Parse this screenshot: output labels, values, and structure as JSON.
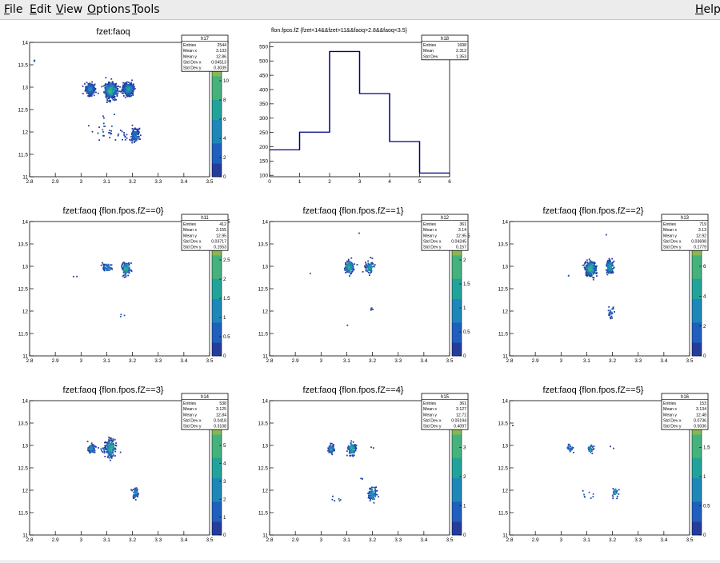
{
  "menu": [
    {
      "first": "F",
      "rest": "ile"
    },
    {
      "first": "E",
      "rest": "dit"
    },
    {
      "first": "V",
      "rest": "iew"
    },
    {
      "first": "O",
      "rest": "ptions"
    },
    {
      "first": "T",
      "rest": "ools"
    },
    {
      "first": "H",
      "rest": "elp"
    }
  ],
  "colors": {
    "frame": "#000000",
    "hist1d": "#000080",
    "scatter_low": "#1a4fb0",
    "scatter_mid": "#20a090",
    "scatter_high": "#a8c040"
  },
  "palette_name": "viridis-like",
  "chart_data": [
    {
      "type": "scatter",
      "name": "h17",
      "title": "fzet:faoq",
      "xlabel": "",
      "ylabel": "",
      "xlim": [
        2.8,
        3.5
      ],
      "ylim": [
        11,
        14
      ],
      "xticks": [
        "2.8",
        "2.9",
        "3",
        "3.1",
        "3.2",
        "3.3",
        "3.4",
        "3.5"
      ],
      "yticks": [
        "11",
        "11.5",
        "12",
        "12.5",
        "13",
        "13.5",
        "14"
      ],
      "stats": [
        [
          "Entries",
          "2544"
        ],
        [
          "Mean x",
          "3.133"
        ],
        [
          "Mean y",
          "12.86"
        ],
        [
          "Std Dev x",
          "0.04513"
        ],
        [
          "Std Dev y",
          "0.3039"
        ]
      ],
      "zticks": [
        "0",
        "2",
        "4",
        "6",
        "8",
        "10",
        "12",
        "14"
      ],
      "zmax": 14,
      "clusters": [
        [
          3.035,
          12.95,
          0.008,
          0.06,
          260,
          0.6
        ],
        [
          3.115,
          12.93,
          0.012,
          0.08,
          520,
          1.0
        ],
        [
          3.185,
          12.95,
          0.01,
          0.06,
          420,
          0.8
        ],
        [
          3.21,
          11.92,
          0.007,
          0.08,
          150,
          0.5
        ],
        [
          3.165,
          11.93,
          0.012,
          0.08,
          12,
          0.15
        ],
        [
          2.82,
          13.58,
          0.004,
          0.02,
          3,
          0.2
        ],
        [
          3.1,
          12.05,
          0.03,
          0.12,
          25,
          0.15
        ]
      ]
    },
    {
      "type": "histogram",
      "name": "h18",
      "title": "flon.fpos.fZ {fzet<14&&fzet>11&&faoq>2.8&&faoq<3.5}",
      "xlim": [
        0,
        6
      ],
      "ylim": [
        95,
        565
      ],
      "xticks": [
        "0",
        "1",
        "2",
        "3",
        "4",
        "5",
        "6"
      ],
      "yticks": [
        "100",
        "150",
        "200",
        "250",
        "300",
        "350",
        "400",
        "450",
        "500",
        "550"
      ],
      "bins": [
        {
          "x": 0,
          "value": 189
        },
        {
          "x": 1,
          "value": 251
        },
        {
          "x": 2,
          "value": 533
        },
        {
          "x": 3,
          "value": 386
        },
        {
          "x": 4,
          "value": 218
        },
        {
          "x": 5,
          "value": 108
        }
      ],
      "stats": [
        [
          "Entries",
          "1698"
        ],
        [
          "Mean",
          "2.312"
        ],
        [
          "Std Dev",
          "1.353"
        ]
      ]
    },
    {
      "type": "scatter",
      "name": "h11",
      "title": "fzet:faoq {flon.fpos.fZ==0}",
      "xlim": [
        2.8,
        3.5
      ],
      "ylim": [
        11,
        14
      ],
      "xticks": [
        "2.8",
        "2.9",
        "3",
        "3.1",
        "3.2",
        "3.3",
        "3.4",
        "3.5"
      ],
      "yticks": [
        "11",
        "11.5",
        "12",
        "12.5",
        "13",
        "13.5",
        "14"
      ],
      "stats": [
        [
          "Entries",
          "412"
        ],
        [
          "Mean x",
          "3.155"
        ],
        [
          "Mean y",
          "12.95"
        ],
        [
          "Std Dev x",
          "0.03717"
        ],
        [
          "Std Dev y",
          "0.1553"
        ]
      ],
      "zticks": [
        "0",
        "0.5",
        "1",
        "1.5",
        "2",
        "2.5",
        "3",
        "3.5"
      ],
      "zmax": 3.5,
      "clusters": [
        [
          3.1,
          12.97,
          0.008,
          0.05,
          60,
          0.5
        ],
        [
          3.175,
          12.95,
          0.008,
          0.07,
          140,
          0.9
        ],
        [
          2.975,
          12.78,
          0.004,
          0.02,
          2,
          0.2
        ],
        [
          3.16,
          11.9,
          0.01,
          0.03,
          3,
          0.2
        ]
      ]
    },
    {
      "type": "scatter",
      "name": "h12",
      "title": "fzet:faoq {flon.fpos.fZ==1}",
      "xlim": [
        2.8,
        3.5
      ],
      "ylim": [
        11,
        14
      ],
      "xticks": [
        "2.8",
        "2.9",
        "3",
        "3.1",
        "3.2",
        "3.3",
        "3.4",
        "3.5"
      ],
      "yticks": [
        "11",
        "11.5",
        "12",
        "12.5",
        "13",
        "13.5",
        "14"
      ],
      "stats": [
        [
          "Entries",
          "361"
        ],
        [
          "Mean x",
          "3.14"
        ],
        [
          "Mean y",
          "12.95"
        ],
        [
          "Std Dev x",
          "0.04245"
        ],
        [
          "Std Dev y",
          "0.157"
        ]
      ],
      "zticks": [
        "0",
        "0.5",
        "1",
        "1.5",
        "2",
        "2.5"
      ],
      "zmax": 2.8,
      "clusters": [
        [
          3.11,
          12.98,
          0.008,
          0.07,
          150,
          0.9
        ],
        [
          3.19,
          12.98,
          0.008,
          0.06,
          110,
          0.8
        ],
        [
          3.15,
          13.75,
          0.003,
          0.01,
          1,
          0.2
        ],
        [
          3.2,
          12.02,
          0.004,
          0.02,
          4,
          0.2
        ],
        [
          3.1,
          11.7,
          0.003,
          0.02,
          1,
          0.2
        ],
        [
          2.96,
          12.85,
          0.004,
          0.02,
          1,
          0.2
        ]
      ]
    },
    {
      "type": "scatter",
      "name": "h13",
      "title": "fzet:faoq {flon.fpos.fZ==2}",
      "xlim": [
        2.8,
        3.5
      ],
      "ylim": [
        11,
        14
      ],
      "xticks": [
        "2.8",
        "2.9",
        "3",
        "3.1",
        "3.2",
        "3.3",
        "3.4",
        "3.5"
      ],
      "yticks": [
        "11",
        "11.5",
        "12",
        "12.5",
        "13",
        "13.5",
        "14"
      ],
      "stats": [
        [
          "Entries",
          "719"
        ],
        [
          "Mean x",
          "3.13"
        ],
        [
          "Mean y",
          "12.92"
        ],
        [
          "Std Dev x",
          "0.03698"
        ],
        [
          "Std Dev y",
          "0.1779"
        ]
      ],
      "zticks": [
        "0",
        "2",
        "4",
        "6",
        "8"
      ],
      "zmax": 9,
      "clusters": [
        [
          3.115,
          12.95,
          0.01,
          0.08,
          340,
          1.0
        ],
        [
          3.19,
          12.98,
          0.007,
          0.07,
          170,
          0.8
        ],
        [
          3.195,
          11.97,
          0.006,
          0.05,
          25,
          0.4
        ],
        [
          3.18,
          13.7,
          0.003,
          0.01,
          1,
          0.2
        ],
        [
          3.03,
          12.8,
          0.004,
          0.02,
          2,
          0.2
        ]
      ]
    },
    {
      "type": "scatter",
      "name": "h14",
      "title": "fzet:faoq {flon.fpos.fZ==3}",
      "xlim": [
        2.8,
        3.5
      ],
      "ylim": [
        11,
        14
      ],
      "xticks": [
        "2.8",
        "2.9",
        "3",
        "3.1",
        "3.2",
        "3.3",
        "3.4",
        "3.5"
      ],
      "yticks": [
        "11",
        "11.5",
        "12",
        "12.5",
        "13",
        "13.5",
        "14"
      ],
      "stats": [
        [
          "Entries",
          "538"
        ],
        [
          "Mean x",
          "3.125"
        ],
        [
          "Mean y",
          "12.84"
        ],
        [
          "Std Dev x",
          "0.0418"
        ],
        [
          "Std Dev y",
          "0.3108"
        ]
      ],
      "zticks": [
        "0",
        "1",
        "2",
        "3",
        "4",
        "5",
        "6",
        "7"
      ],
      "zmax": 7.5,
      "clusters": [
        [
          3.04,
          12.93,
          0.006,
          0.05,
          70,
          0.6
        ],
        [
          3.115,
          12.93,
          0.009,
          0.09,
          260,
          1.0
        ],
        [
          3.21,
          11.93,
          0.007,
          0.06,
          50,
          0.5
        ],
        [
          3.08,
          12.9,
          0.01,
          0.03,
          10,
          0.3
        ]
      ]
    },
    {
      "type": "scatter",
      "name": "h15",
      "title": "fzet:faoq {flon.fpos.fZ==4}",
      "xlim": [
        2.8,
        3.5
      ],
      "ylim": [
        11,
        14
      ],
      "xticks": [
        "2.8",
        "2.9",
        "3",
        "3.1",
        "3.2",
        "3.3",
        "3.4",
        "3.5"
      ],
      "yticks": [
        "11",
        "11.5",
        "12",
        "12.5",
        "13",
        "13.5",
        "14"
      ],
      "stats": [
        [
          "Entries",
          "361"
        ],
        [
          "Mean x",
          "3.127"
        ],
        [
          "Mean y",
          "12.71"
        ],
        [
          "Std Dev x",
          "0.05194"
        ],
        [
          "Std Dev y",
          "0.4097"
        ]
      ],
      "zticks": [
        "0",
        "1",
        "2",
        "3",
        "4"
      ],
      "zmax": 4.6,
      "clusters": [
        [
          3.04,
          12.92,
          0.006,
          0.05,
          60,
          0.6
        ],
        [
          3.12,
          12.92,
          0.008,
          0.07,
          130,
          0.9
        ],
        [
          3.2,
          11.92,
          0.008,
          0.08,
          80,
          0.7
        ],
        [
          3.16,
          12.25,
          0.003,
          0.02,
          3,
          0.2
        ],
        [
          3.07,
          11.8,
          0.02,
          0.05,
          6,
          0.2
        ],
        [
          3.2,
          12.95,
          0.004,
          0.02,
          2,
          0.2
        ]
      ]
    },
    {
      "type": "scatter",
      "name": "h16",
      "title": "fzet:faoq {flon.fpos.fZ==5}",
      "xlim": [
        2.8,
        3.5
      ],
      "ylim": [
        11,
        14
      ],
      "xticks": [
        "2.8",
        "2.9",
        "3",
        "3.1",
        "3.2",
        "3.3",
        "3.4",
        "3.5"
      ],
      "yticks": [
        "11",
        "11.5",
        "12",
        "12.5",
        "13",
        "13.5",
        "14"
      ],
      "stats": [
        [
          "Entries",
          "153"
        ],
        [
          "Mean x",
          "3.134"
        ],
        [
          "Mean y",
          "12.48"
        ],
        [
          "Std Dev x",
          "0.0736"
        ],
        [
          "Std Dev y",
          "0.5036"
        ]
      ],
      "zticks": [
        "0",
        "0.5",
        "1",
        "1.5",
        "2"
      ],
      "zmax": 2.3,
      "clusters": [
        [
          3.035,
          12.93,
          0.006,
          0.05,
          25,
          0.5
        ],
        [
          3.115,
          12.93,
          0.006,
          0.05,
          35,
          0.7
        ],
        [
          3.21,
          11.93,
          0.006,
          0.06,
          30,
          0.7
        ],
        [
          3.11,
          11.9,
          0.02,
          0.06,
          8,
          0.3
        ],
        [
          2.81,
          13.45,
          0.003,
          0.01,
          1,
          0.2
        ],
        [
          3.2,
          12.95,
          0.004,
          0.02,
          2,
          0.2
        ]
      ]
    }
  ]
}
